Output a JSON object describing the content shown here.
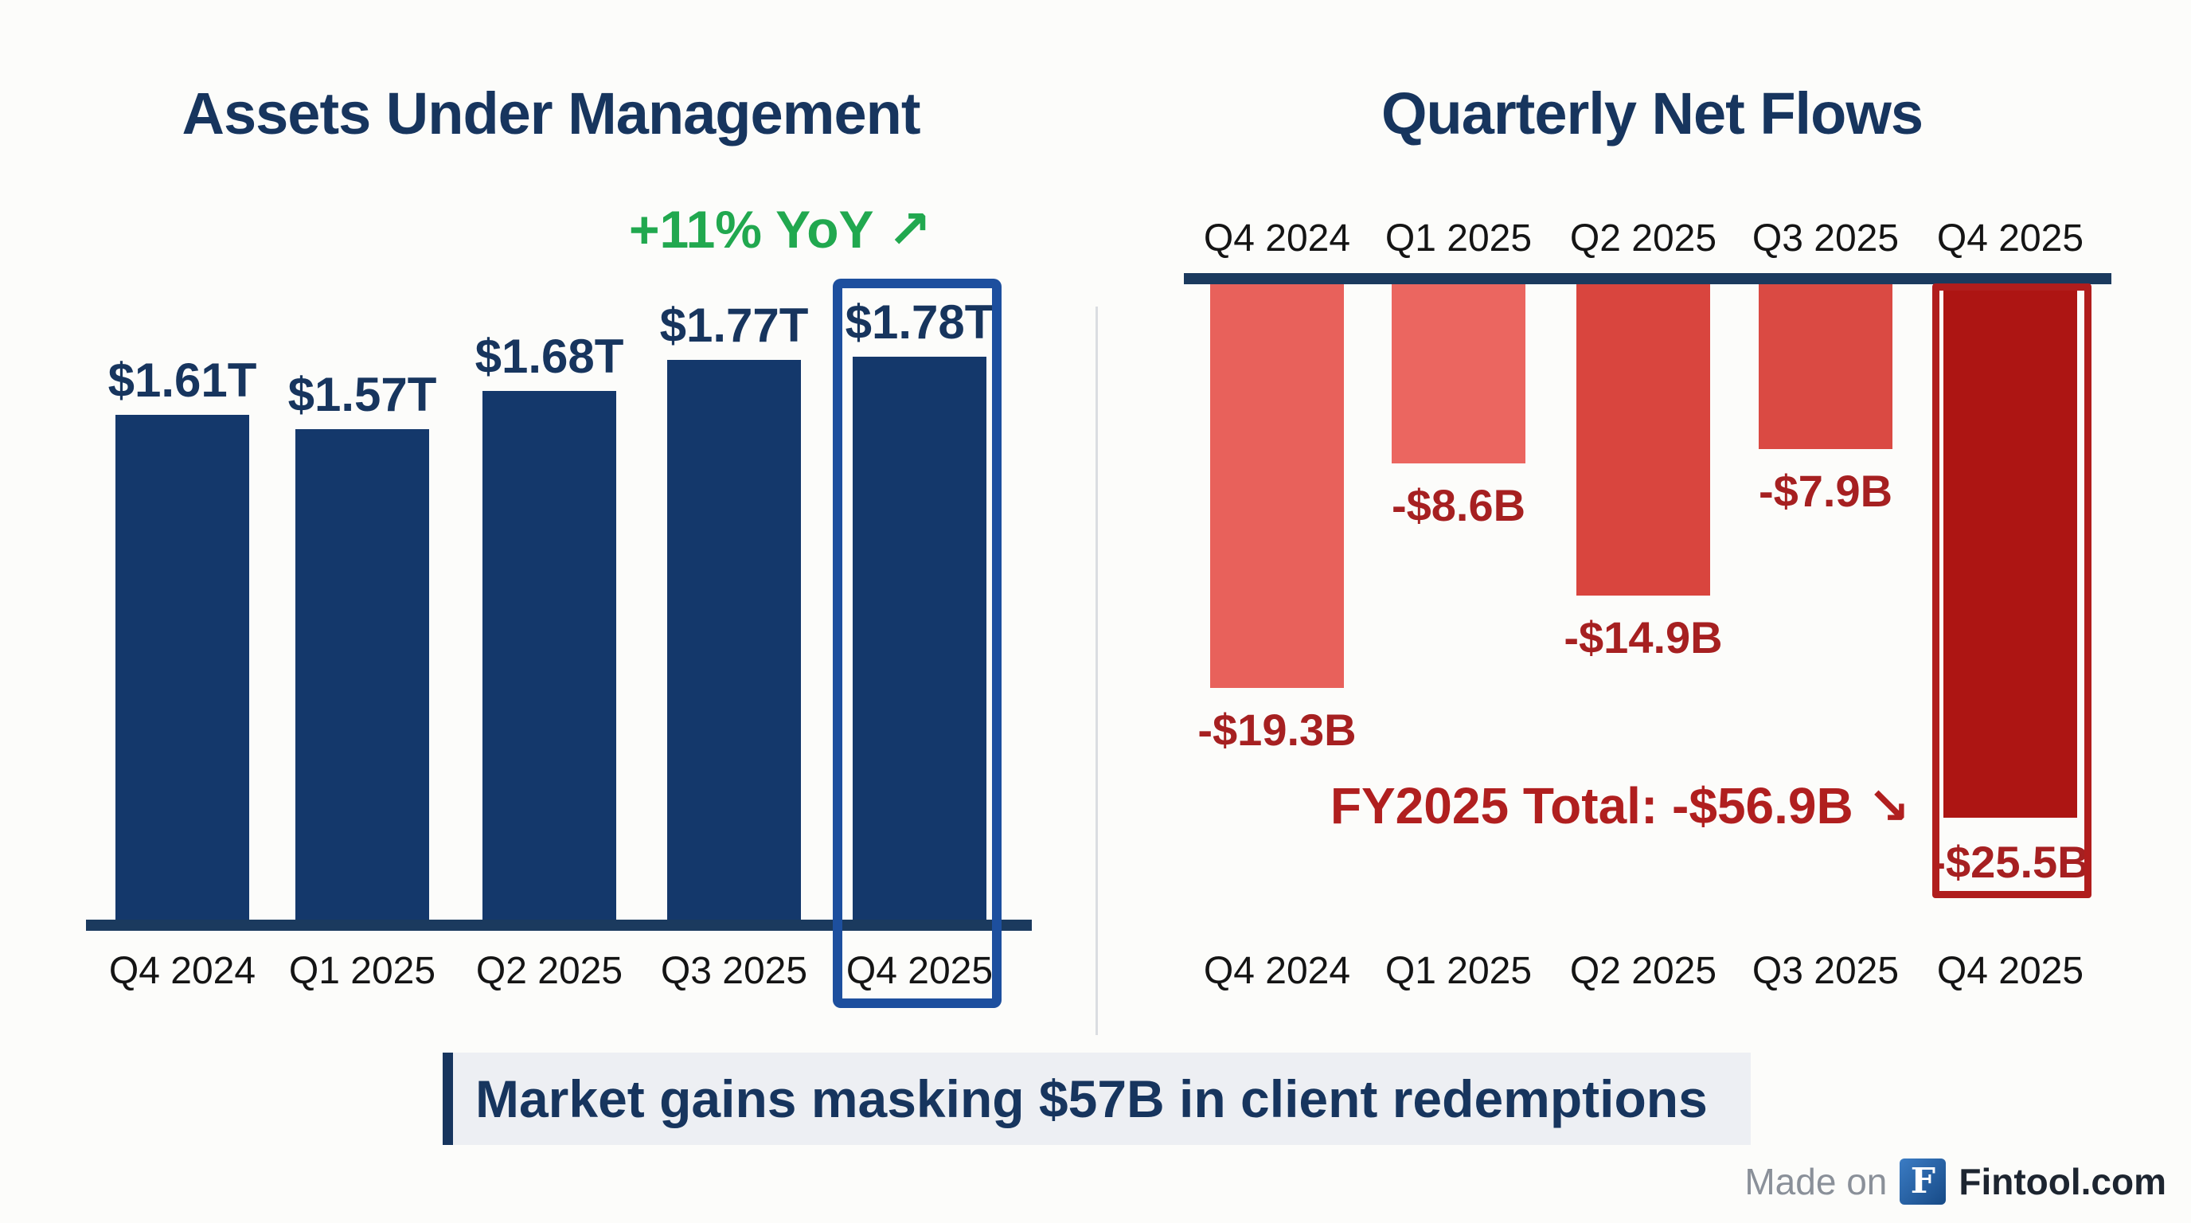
{
  "chart_data": [
    {
      "type": "bar",
      "title": "Assets Under Management",
      "annotation": "+11% YoY ↗",
      "annotation_color": "#21a84f",
      "categories": [
        "Q4 2024",
        "Q1 2025",
        "Q2 2025",
        "Q3 2025",
        "Q4 2025"
      ],
      "values": [
        1.61,
        1.57,
        1.68,
        1.77,
        1.78
      ],
      "value_labels": [
        "$1.61T",
        "$1.57T",
        "$1.68T",
        "$1.77T",
        "$1.78T"
      ],
      "unit": "trillions USD",
      "bar_color": "#14386b",
      "value_label_color": "#17355e",
      "highlighted_category": "Q4 2025",
      "highlight_border_color": "#1d4f9e",
      "axis_color": "#1b3a5e",
      "ylim": [
        0.14,
        1.9
      ],
      "grid": false,
      "legend": false
    },
    {
      "type": "bar",
      "title": "Quarterly Net Flows",
      "annotation": "FY2025 Total: -$56.9B ↘",
      "annotation_color": "#b01f1f",
      "categories": [
        "Q4 2024",
        "Q1 2025",
        "Q2 2025",
        "Q3 2025",
        "Q4 2025"
      ],
      "values": [
        -19.3,
        -8.6,
        -14.9,
        -7.9,
        -25.5
      ],
      "value_labels": [
        "-$19.3B",
        "-$8.6B",
        "-$14.9B",
        "-$7.9B",
        "-$25.5B"
      ],
      "unit": "billions USD",
      "bar_colors": [
        "#e8615b",
        "#eb6660",
        "#d9453e",
        "#da4a43",
        "#ad1513"
      ],
      "value_label_color": "#a62021",
      "highlighted_category": "Q4 2025",
      "highlight_border_color": "#b01d1d",
      "axis_color": "#1b3a5e",
      "ylim": [
        -30,
        0
      ],
      "grid": false,
      "legend": false
    }
  ],
  "callout": {
    "text": "Market gains masking $57B in client redemptions"
  },
  "footer": {
    "made_on": "Made on",
    "logo_letter": "F",
    "brand": "Fintool.com"
  }
}
